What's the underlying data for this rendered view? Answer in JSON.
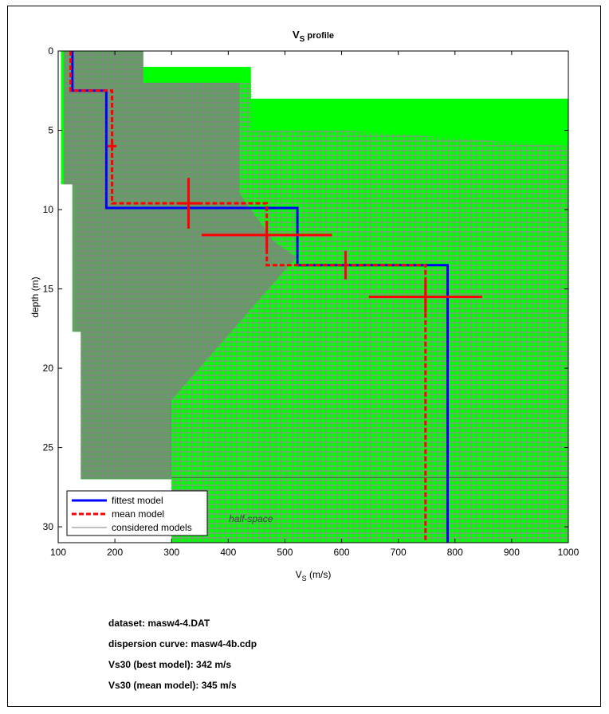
{
  "chart_data": {
    "type": "line",
    "title": "V",
    "title_sub": "S",
    "title_rest": " profile",
    "xlabel": "V",
    "xlabel_sub": "S",
    "xlabel_rest": " (m/s)",
    "ylabel": "depth (m)",
    "xlim": [
      100,
      1000
    ],
    "ylim": [
      0,
      31
    ],
    "y_reversed": true,
    "xticks": [
      100,
      200,
      300,
      400,
      500,
      600,
      700,
      800,
      900,
      1000
    ],
    "yticks": [
      0,
      5,
      10,
      15,
      20,
      25,
      30
    ],
    "grid": false,
    "legend_position": "bottom-left",
    "annotation": "half-space",
    "colors": {
      "fittest": "#0000ff",
      "mean": "#ff0000",
      "considered": "#808080",
      "range_fill": "#00ff00"
    },
    "series": [
      {
        "name": "fittest model",
        "style": "solid",
        "points": [
          [
            125,
            0
          ],
          [
            125,
            2.5
          ],
          [
            185,
            2.5
          ],
          [
            185,
            9.9
          ],
          [
            522,
            9.9
          ],
          [
            522,
            13.5
          ],
          [
            787,
            13.5
          ],
          [
            787,
            31
          ]
        ]
      },
      {
        "name": "mean model",
        "style": "dashed",
        "points": [
          [
            122,
            0
          ],
          [
            122,
            2.5
          ],
          [
            195,
            2.5
          ],
          [
            195,
            9.6
          ],
          [
            468,
            9.6
          ],
          [
            468,
            13.5
          ],
          [
            748,
            13.5
          ],
          [
            748,
            31
          ]
        ]
      },
      {
        "name": "considered models",
        "style": "thin"
      }
    ],
    "range_envelope": [
      [
        100,
        0
      ],
      [
        250,
        0
      ],
      [
        250,
        1
      ],
      [
        440,
        1
      ],
      [
        440,
        3
      ],
      [
        545,
        3
      ],
      [
        545,
        3
      ],
      [
        1000,
        3
      ],
      [
        1000,
        31
      ],
      [
        300,
        31
      ],
      [
        300,
        27
      ],
      [
        140,
        27
      ],
      [
        140,
        17.7
      ],
      [
        125,
        17.7
      ],
      [
        125,
        8.4
      ],
      [
        105,
        8.4
      ],
      [
        105,
        0
      ]
    ],
    "considered_envelope": [
      [
        110,
        0
      ],
      [
        250,
        0
      ],
      [
        250,
        2
      ],
      [
        440,
        2
      ],
      [
        440,
        5
      ],
      [
        600,
        5
      ],
      [
        1000,
        6
      ],
      [
        1000,
        31
      ],
      [
        300,
        31
      ],
      [
        300,
        27
      ],
      [
        140,
        27
      ],
      [
        140,
        17.7
      ],
      [
        130,
        17.7
      ],
      [
        130,
        8.4
      ],
      [
        110,
        8.4
      ]
    ],
    "mean_error_bars": [
      {
        "x": 195,
        "y": 6.0,
        "x_err": 8,
        "y_err": 0.3
      },
      {
        "x": 330,
        "y": 9.6,
        "x_err": 20,
        "y_err": 1.6
      },
      {
        "x": 468,
        "y": 11.6,
        "x_err": 115,
        "y_err": 0.9
      },
      {
        "x": 607,
        "y": 13.5,
        "x_err": 3,
        "y_err": 0.9
      },
      {
        "x": 748,
        "y": 15.5,
        "x_err": 100,
        "y_err": 1.0
      }
    ],
    "half_space_depth": 26.9
  },
  "info": {
    "dataset": "dataset: masw4-4.DAT",
    "dispersion": "dispersion curve: masw4-4b.cdp",
    "vs30_best": "Vs30 (best model): 342 m/s",
    "vs30_mean": "Vs30 (mean model): 345 m/s"
  }
}
